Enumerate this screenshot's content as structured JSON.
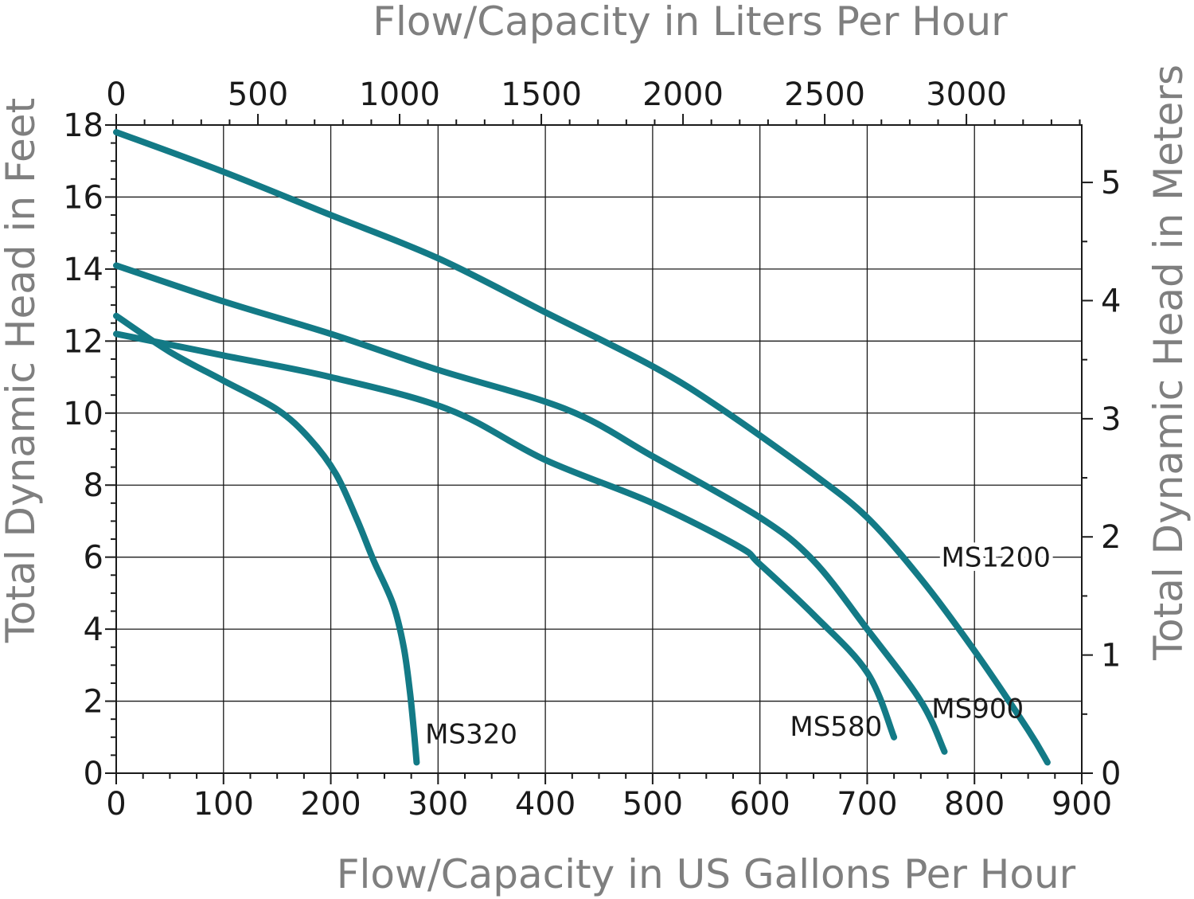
{
  "chart_data": {
    "type": "line",
    "xlabel": "Flow/Capacity in US Gallons Per Hour",
    "x2label": "Flow/Capacity in Liters Per Hour",
    "ylabel": "Total Dynamic Head in Feet",
    "y2label": "Total Dynamic Head in Meters",
    "xlim": [
      0,
      900
    ],
    "ylim": [
      0,
      18
    ],
    "x2lim": [
      0,
      3407
    ],
    "y2lim": [
      0,
      5.486
    ],
    "grid": true,
    "line_color": "#137a86",
    "x_ticks": [
      {
        "value": 0,
        "label": "0"
      },
      {
        "value": 100,
        "label": "100"
      },
      {
        "value": 200,
        "label": "200"
      },
      {
        "value": 300,
        "label": "300"
      },
      {
        "value": 400,
        "label": "400"
      },
      {
        "value": 500,
        "label": "500"
      },
      {
        "value": 600,
        "label": "600"
      },
      {
        "value": 700,
        "label": "700"
      },
      {
        "value": 800,
        "label": "800"
      },
      {
        "value": 900,
        "label": "900"
      }
    ],
    "y_ticks": [
      {
        "value": 0,
        "label": "0"
      },
      {
        "value": 2,
        "label": "2"
      },
      {
        "value": 4,
        "label": "4"
      },
      {
        "value": 6,
        "label": "6"
      },
      {
        "value": 8,
        "label": "8"
      },
      {
        "value": 10,
        "label": "10"
      },
      {
        "value": 12,
        "label": "12"
      },
      {
        "value": 14,
        "label": "14"
      },
      {
        "value": 16,
        "label": "16"
      },
      {
        "value": 18,
        "label": "18"
      }
    ],
    "x2_ticks": [
      {
        "value": 0,
        "label": "0"
      },
      {
        "value": 500,
        "label": "500"
      },
      {
        "value": 1000,
        "label": "1000"
      },
      {
        "value": 1500,
        "label": "1500"
      },
      {
        "value": 2000,
        "label": "2000"
      },
      {
        "value": 2500,
        "label": "2500"
      },
      {
        "value": 3000,
        "label": "3000"
      }
    ],
    "y2_ticks": [
      {
        "value": 0,
        "label": "0"
      },
      {
        "value": 1,
        "label": "1"
      },
      {
        "value": 2,
        "label": "2"
      },
      {
        "value": 3,
        "label": "3"
      },
      {
        "value": 4,
        "label": "4"
      },
      {
        "value": 5,
        "label": "5"
      }
    ],
    "series": [
      {
        "name": "MS320",
        "points": [
          [
            0,
            12.7
          ],
          [
            50,
            11.7
          ],
          [
            100,
            10.9
          ],
          [
            150,
            10.1
          ],
          [
            180,
            9.3
          ],
          [
            205,
            8.3
          ],
          [
            225,
            7.0
          ],
          [
            240,
            5.9
          ],
          [
            258,
            4.7
          ],
          [
            268,
            3.5
          ],
          [
            274,
            2.2
          ],
          [
            278,
            1.0
          ],
          [
            280,
            0.3
          ]
        ]
      },
      {
        "name": "MS580",
        "points": [
          [
            0,
            12.2
          ],
          [
            100,
            11.6
          ],
          [
            200,
            11.0
          ],
          [
            310,
            10.1
          ],
          [
            400,
            8.7
          ],
          [
            500,
            7.5
          ],
          [
            580,
            6.3
          ],
          [
            600,
            5.8
          ],
          [
            650,
            4.4
          ],
          [
            700,
            2.8
          ],
          [
            725,
            1.0
          ]
        ]
      },
      {
        "name": "MS900",
        "points": [
          [
            0,
            14.1
          ],
          [
            100,
            13.1
          ],
          [
            200,
            12.2
          ],
          [
            300,
            11.2
          ],
          [
            420,
            10.1
          ],
          [
            500,
            8.8
          ],
          [
            600,
            7.1
          ],
          [
            650,
            5.9
          ],
          [
            700,
            4.0
          ],
          [
            750,
            2.0
          ],
          [
            772,
            0.6
          ]
        ]
      },
      {
        "name": "MS1200",
        "points": [
          [
            0,
            17.8
          ],
          [
            100,
            16.7
          ],
          [
            200,
            15.5
          ],
          [
            300,
            14.3
          ],
          [
            400,
            12.8
          ],
          [
            500,
            11.3
          ],
          [
            565,
            10.1
          ],
          [
            650,
            8.3
          ],
          [
            700,
            7.1
          ],
          [
            750,
            5.4
          ],
          [
            800,
            3.4
          ],
          [
            850,
            1.2
          ],
          [
            868,
            0.3
          ]
        ]
      }
    ],
    "annotations": [
      {
        "series": "MS320",
        "text": "MS320",
        "x": 288,
        "y": 1.1
      },
      {
        "series": "MS580",
        "text": "MS580",
        "x": 628,
        "y": 1.3
      },
      {
        "series": "MS900",
        "text": "MS900",
        "x": 760,
        "y": 1.8
      },
      {
        "series": "MS1200",
        "text": "MS1200",
        "x": 769,
        "y": 6.0
      }
    ]
  }
}
